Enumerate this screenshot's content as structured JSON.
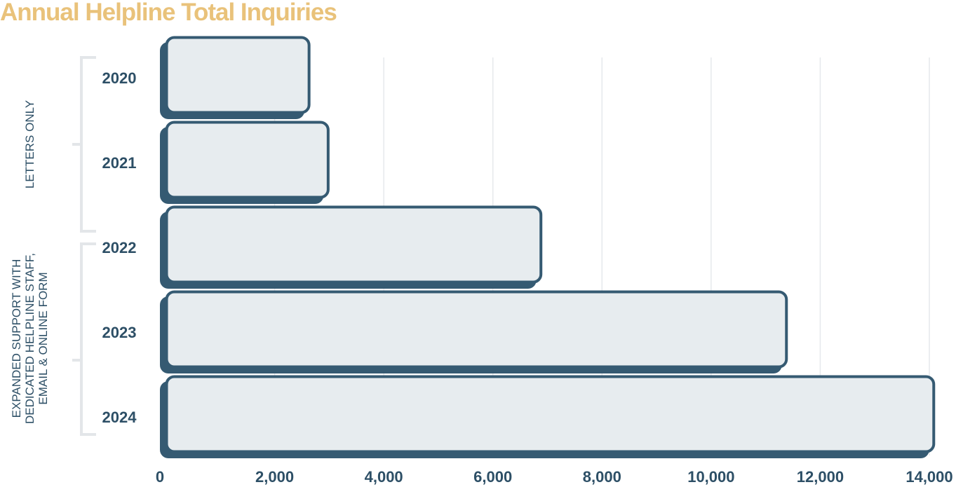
{
  "chart_data": {
    "type": "bar",
    "orientation": "horizontal",
    "title": "Annual Helpline Total Inquiries",
    "categories": [
      "2020",
      "2021",
      "2022",
      "2023",
      "2024"
    ],
    "values": [
      2650,
      3000,
      6900,
      11400,
      14100
    ],
    "xlabel": "",
    "ylabel": "",
    "xlim": [
      0,
      14000
    ],
    "xticks": [
      0,
      2000,
      4000,
      6000,
      8000,
      10000,
      12000,
      14000
    ],
    "xtick_labels": [
      "0",
      "2,000",
      "4,000",
      "6,000",
      "8,000",
      "10,000",
      "12,000",
      "14,000"
    ],
    "grid": "vertical",
    "groups": [
      {
        "label": "LETTERS ONLY",
        "lines": [
          "LETTERS ONLY"
        ],
        "categories": [
          "2020",
          "2021"
        ]
      },
      {
        "label": "EXPANDED SUPPORT WITH DEDICATED HELPLINE STAFF, EMAIL & ONLINE FORM",
        "lines": [
          "EXPANDED SUPPORT WITH",
          "DEDICATED HELPLINE STAFF,",
          "EMAIL & ONLINE FORM"
        ],
        "categories": [
          "2022",
          "2023",
          "2024"
        ]
      }
    ]
  },
  "colors": {
    "title": "#E9C27A",
    "bar_fill": "#E7ECEF",
    "bar_outline": "#355A72",
    "text": "#2D4F66",
    "grid": "#E6E9EC",
    "bracket": "#E3E6E9"
  }
}
